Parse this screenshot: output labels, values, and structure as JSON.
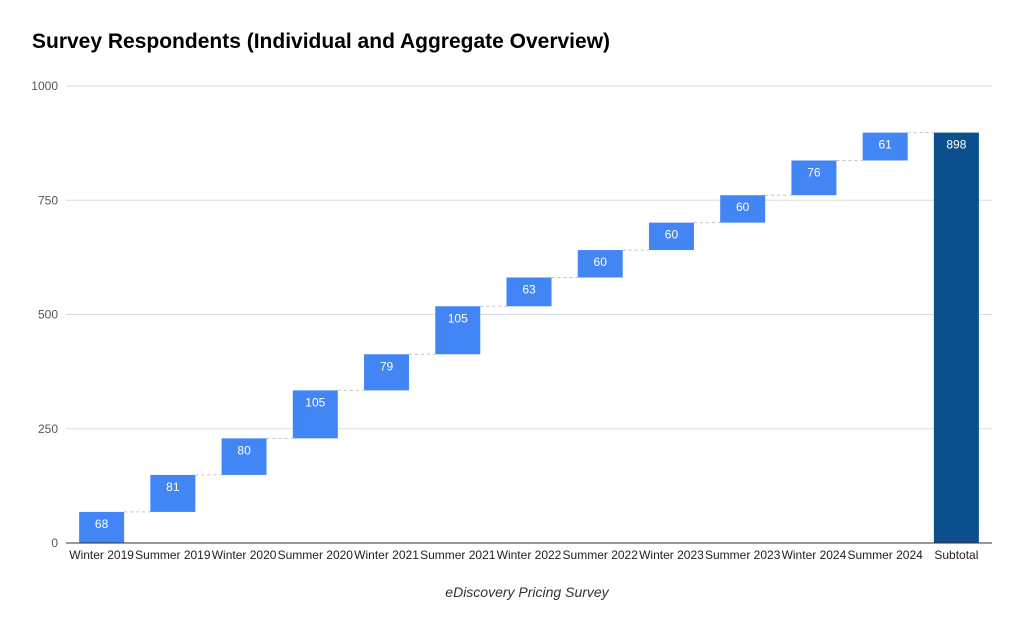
{
  "chart_data": {
    "type": "waterfall",
    "title": "Survey Respondents (Individual and Aggregate Overview)",
    "xlabel": "eDiscovery Pricing Survey",
    "ylabel": "",
    "ylim": [
      0,
      1000
    ],
    "yticks": [
      0,
      250,
      500,
      750,
      1000
    ],
    "grid": true,
    "legend": "none",
    "categories": [
      "Winter 2019",
      "Summer 2019",
      "Winter 2020",
      "Summer 2020",
      "Winter 2021",
      "Summer 2021",
      "Winter 2022",
      "Summer 2022",
      "Winter 2023",
      "Summer 2023",
      "Winter 2024",
      "Summer 2024"
    ],
    "values": [
      68,
      81,
      80,
      105,
      79,
      105,
      63,
      60,
      60,
      60,
      76,
      61
    ],
    "total": {
      "label": "Subtotal",
      "value": 898
    },
    "colors": {
      "increase": "#4285f4",
      "total": "#0b4f8c",
      "grid": "#dddddd",
      "axis": "#333333",
      "title": "#000000",
      "tick_text": "#555555",
      "category_text": "#222222",
      "data_label": "#ffffff"
    }
  }
}
